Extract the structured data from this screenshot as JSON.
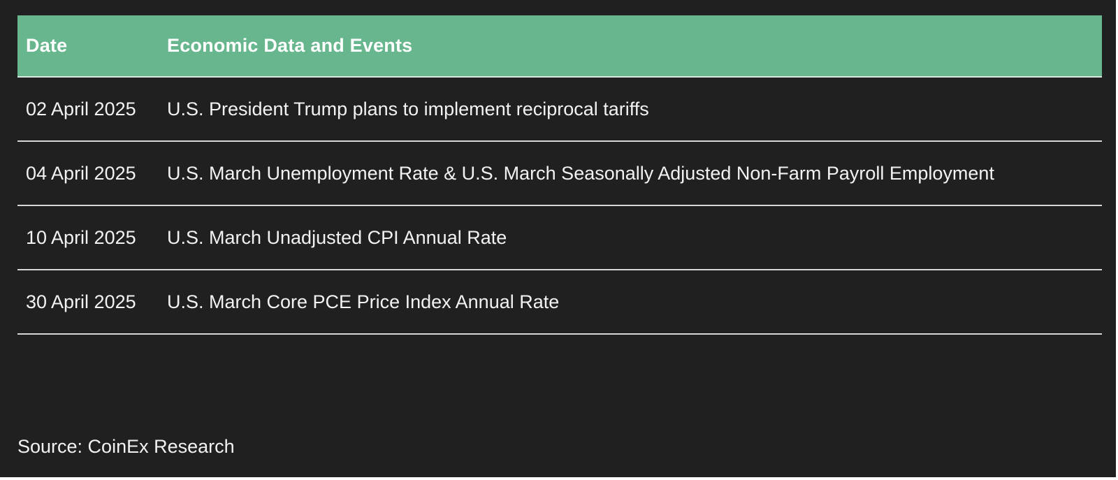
{
  "table": {
    "headers": {
      "date": "Date",
      "event": "Economic Data and Events"
    },
    "rows": [
      {
        "date": "02 April 2025",
        "event": "U.S. President Trump plans to implement reciprocal tariffs"
      },
      {
        "date": "04 April 2025",
        "event": "U.S. March Unemployment Rate & U.S. March Seasonally Adjusted Non-Farm Payroll Employment"
      },
      {
        "date": "10 April 2025",
        "event": "U.S. March Unadjusted CPI Annual Rate"
      },
      {
        "date": "30 April 2025",
        "event": "U.S. March Core PCE Price Index Annual Rate"
      }
    ]
  },
  "source": "Source: CoinEx Research",
  "colors": {
    "background": "#202020",
    "header": "#67b68d",
    "text": "#f2f2f2"
  }
}
